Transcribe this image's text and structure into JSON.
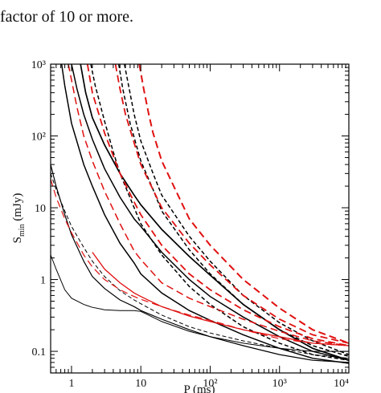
{
  "page": {
    "caption_fragment": "factor of 10 or more."
  },
  "chart_data": {
    "type": "line",
    "xlabel": "P (ms)",
    "ylabel": "S_min (mJy)",
    "xscale": "log",
    "yscale": "log",
    "xlim": [
      0.5,
      10000
    ],
    "ylim": [
      0.05,
      1000
    ],
    "xtick_labels": [
      "1",
      "10",
      "10²",
      "10³",
      "10⁴"
    ],
    "ytick_labels": [
      "0.1",
      "1",
      "10",
      "10²",
      "10³"
    ],
    "grid": false,
    "colors": {
      "black": "#000000",
      "red": "#e01010"
    },
    "series": [
      {
        "color": "#000000",
        "dash": "solid",
        "width": 1.0,
        "points": [
          [
            0.5,
            2.2
          ],
          [
            0.6,
            1.4
          ],
          [
            0.8,
            0.72
          ],
          [
            1.0,
            0.55
          ],
          [
            1.5,
            0.45
          ],
          [
            2,
            0.41
          ],
          [
            3,
            0.38
          ],
          [
            5,
            0.37
          ],
          [
            8,
            0.37
          ],
          [
            10,
            0.36
          ],
          [
            12,
            0.33
          ],
          [
            20,
            0.26
          ],
          [
            50,
            0.19
          ],
          [
            100,
            0.16
          ],
          [
            300,
            0.13
          ],
          [
            1000,
            0.11
          ],
          [
            3000,
            0.1
          ],
          [
            10000,
            0.1
          ]
        ]
      },
      {
        "color": "#000000",
        "dash": "solid",
        "width": 1.2,
        "points": [
          [
            0.5,
            40
          ],
          [
            0.6,
            20
          ],
          [
            0.8,
            8
          ],
          [
            1,
            4.2
          ],
          [
            1.5,
            1.8
          ],
          [
            2,
            1.1
          ],
          [
            3,
            0.75
          ],
          [
            5,
            0.52
          ],
          [
            8,
            0.42
          ],
          [
            10,
            0.37
          ],
          [
            20,
            0.28
          ],
          [
            50,
            0.2
          ],
          [
            100,
            0.16
          ],
          [
            300,
            0.12
          ],
          [
            1000,
            0.09
          ],
          [
            3000,
            0.075
          ],
          [
            10000,
            0.07
          ]
        ]
      },
      {
        "color": "#000000",
        "dash": "solid",
        "width": 1.5,
        "points": [
          [
            0.72,
            1000
          ],
          [
            0.8,
            500
          ],
          [
            1,
            150
          ],
          [
            1.5,
            40
          ],
          [
            2,
            20
          ],
          [
            3,
            8
          ],
          [
            5,
            3.2
          ],
          [
            8,
            1.7
          ],
          [
            10,
            1.2
          ],
          [
            20,
            0.65
          ],
          [
            50,
            0.37
          ],
          [
            100,
            0.27
          ],
          [
            300,
            0.17
          ],
          [
            1000,
            0.11
          ],
          [
            3000,
            0.08
          ],
          [
            10000,
            0.068
          ]
        ]
      },
      {
        "color": "#000000",
        "dash": "solid",
        "width": 1.5,
        "points": [
          [
            1.0,
            1000
          ],
          [
            1.2,
            450
          ],
          [
            1.5,
            200
          ],
          [
            2,
            90
          ],
          [
            3,
            35
          ],
          [
            5,
            14
          ],
          [
            8,
            7
          ],
          [
            10,
            5.5
          ],
          [
            20,
            2.4
          ],
          [
            50,
            1.0
          ],
          [
            100,
            0.58
          ],
          [
            300,
            0.3
          ],
          [
            1000,
            0.16
          ],
          [
            3000,
            0.1
          ],
          [
            10000,
            0.075
          ]
        ]
      },
      {
        "color": "#000000",
        "dash": "solid",
        "width": 1.7,
        "points": [
          [
            1.35,
            1000
          ],
          [
            1.6,
            400
          ],
          [
            2,
            180
          ],
          [
            3,
            75
          ],
          [
            5,
            30
          ],
          [
            8,
            15
          ],
          [
            10,
            11
          ],
          [
            20,
            5
          ],
          [
            50,
            2.1
          ],
          [
            100,
            1.15
          ],
          [
            300,
            0.45
          ],
          [
            1000,
            0.2
          ],
          [
            3000,
            0.11
          ],
          [
            10000,
            0.075
          ]
        ]
      },
      {
        "color": "#000000",
        "dash": "dashed",
        "width": 1.0,
        "points": [
          [
            0.5,
            30
          ],
          [
            0.6,
            18
          ],
          [
            0.8,
            9
          ],
          [
            1,
            5.5
          ],
          [
            1.5,
            2.8
          ],
          [
            2,
            1.8
          ],
          [
            3,
            1.1
          ],
          [
            5,
            0.7
          ],
          [
            8,
            0.52
          ],
          [
            10,
            0.46
          ],
          [
            20,
            0.32
          ],
          [
            50,
            0.22
          ],
          [
            100,
            0.18
          ],
          [
            300,
            0.14
          ],
          [
            1000,
            0.11
          ],
          [
            3000,
            0.09
          ],
          [
            10000,
            0.08
          ]
        ]
      },
      {
        "color": "#000000",
        "dash": "dashed",
        "width": 1.5,
        "points": [
          [
            1.9,
            1000
          ],
          [
            2.2,
            500
          ],
          [
            3,
            160
          ],
          [
            4,
            60
          ],
          [
            5,
            30
          ],
          [
            8,
            10
          ],
          [
            10,
            6
          ],
          [
            20,
            2.2
          ],
          [
            50,
            0.8
          ],
          [
            100,
            0.45
          ],
          [
            300,
            0.22
          ],
          [
            1000,
            0.13
          ],
          [
            3000,
            0.09
          ],
          [
            10000,
            0.075
          ]
        ]
      },
      {
        "color": "#000000",
        "dash": "dashed",
        "width": 1.5,
        "points": [
          [
            4.8,
            1000
          ],
          [
            5.5,
            450
          ],
          [
            7,
            150
          ],
          [
            10,
            45
          ],
          [
            15,
            18
          ],
          [
            20,
            9
          ],
          [
            50,
            2.6
          ],
          [
            100,
            1.2
          ],
          [
            300,
            0.45
          ],
          [
            1000,
            0.2
          ],
          [
            3000,
            0.12
          ],
          [
            10000,
            0.085
          ]
        ]
      },
      {
        "color": "#000000",
        "dash": "dashed",
        "width": 1.5,
        "points": [
          [
            5.8,
            1000
          ],
          [
            6.8,
            450
          ],
          [
            8,
            200
          ],
          [
            10,
            85
          ],
          [
            15,
            30
          ],
          [
            20,
            15
          ],
          [
            50,
            4
          ],
          [
            100,
            1.8
          ],
          [
            300,
            0.6
          ],
          [
            1000,
            0.25
          ],
          [
            3000,
            0.14
          ],
          [
            10000,
            0.09
          ]
        ]
      },
      {
        "color": "#e01010",
        "dash": "dashed",
        "width": 1.2,
        "points": [
          [
            0.5,
            25
          ],
          [
            0.6,
            14
          ],
          [
            0.8,
            7
          ],
          [
            1,
            4.5
          ],
          [
            1.5,
            2.2
          ],
          [
            2,
            1.5
          ],
          [
            3,
            1.0
          ],
          [
            5,
            0.72
          ],
          [
            8,
            0.58
          ],
          [
            10,
            0.53
          ],
          [
            20,
            0.42
          ],
          [
            50,
            0.32
          ],
          [
            100,
            0.27
          ],
          [
            300,
            0.2
          ],
          [
            1000,
            0.15
          ],
          [
            3000,
            0.13
          ],
          [
            10000,
            0.12
          ]
        ]
      },
      {
        "color": "#e01010",
        "dash": "dashed",
        "width": 1.5,
        "points": [
          [
            0.9,
            1000
          ],
          [
            1.0,
            600
          ],
          [
            1.2,
            250
          ],
          [
            1.5,
            100
          ],
          [
            2,
            45
          ],
          [
            3,
            17
          ],
          [
            5,
            6
          ],
          [
            8,
            2.5
          ],
          [
            10,
            1.9
          ],
          [
            20,
            0.9
          ],
          [
            50,
            0.55
          ],
          [
            100,
            0.42
          ],
          [
            300,
            0.28
          ],
          [
            1000,
            0.19
          ],
          [
            3000,
            0.14
          ],
          [
            10000,
            0.12
          ]
        ]
      },
      {
        "color": "#e01010",
        "dash": "dashed",
        "width": 1.8,
        "points": [
          [
            1.7,
            1000
          ],
          [
            2,
            400
          ],
          [
            3,
            110
          ],
          [
            5,
            30
          ],
          [
            8,
            12
          ],
          [
            10,
            8
          ],
          [
            20,
            3
          ],
          [
            50,
            1.2
          ],
          [
            100,
            0.72
          ],
          [
            300,
            0.38
          ],
          [
            1000,
            0.22
          ],
          [
            3000,
            0.15
          ],
          [
            10000,
            0.12
          ]
        ]
      },
      {
        "color": "#e01010",
        "dash": "dashed",
        "width": 1.8,
        "points": [
          [
            4.3,
            1000
          ],
          [
            5,
            450
          ],
          [
            6,
            200
          ],
          [
            8,
            80
          ],
          [
            10,
            40
          ],
          [
            20,
            10
          ],
          [
            50,
            3.2
          ],
          [
            100,
            1.6
          ],
          [
            300,
            0.6
          ],
          [
            1000,
            0.28
          ],
          [
            3000,
            0.17
          ],
          [
            10000,
            0.13
          ]
        ]
      },
      {
        "color": "#e01010",
        "dash": "dashed",
        "width": 2.0,
        "points": [
          [
            9.5,
            1000
          ],
          [
            11,
            450
          ],
          [
            13,
            200
          ],
          [
            15,
            110
          ],
          [
            20,
            45
          ],
          [
            50,
            7
          ],
          [
            100,
            3
          ],
          [
            300,
            1.0
          ],
          [
            1000,
            0.4
          ],
          [
            3000,
            0.2
          ],
          [
            10000,
            0.13
          ]
        ]
      },
      {
        "color": "#e01010",
        "dash": "solid",
        "width": 1.3,
        "points": [
          [
            2,
            2.4
          ],
          [
            3,
            1.4
          ],
          [
            5,
            0.9
          ],
          [
            8,
            0.65
          ],
          [
            10,
            0.58
          ],
          [
            20,
            0.42
          ],
          [
            50,
            0.31
          ],
          [
            100,
            0.26
          ],
          [
            300,
            0.2
          ],
          [
            1000,
            0.16
          ],
          [
            3000,
            0.13
          ],
          [
            10000,
            0.12
          ]
        ]
      }
    ]
  }
}
